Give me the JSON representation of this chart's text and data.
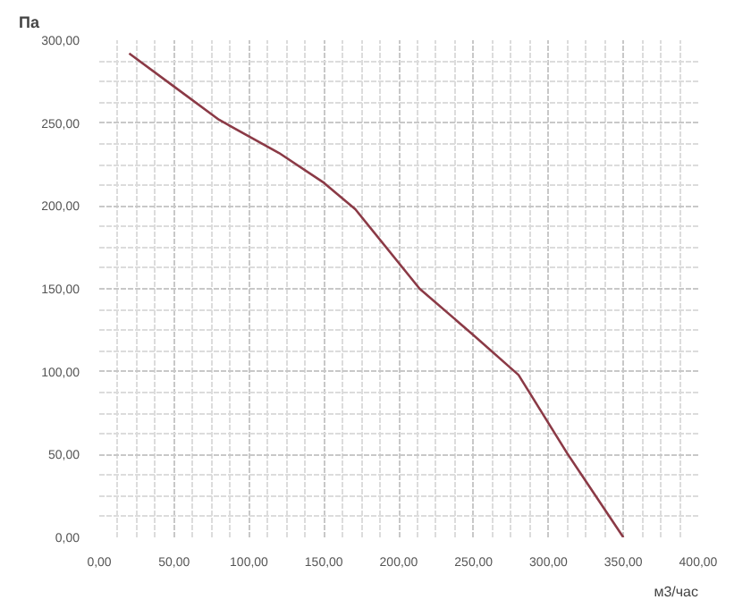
{
  "chart_data": {
    "type": "line",
    "xlabel": "м3/час",
    "ylabel": "Па",
    "x": [
      20,
      50,
      80,
      120,
      150,
      171,
      214,
      250,
      280,
      313,
      350
    ],
    "series": [
      {
        "color": "#8b3a46",
        "values": [
          292,
          272,
          252,
          232,
          214,
          198,
          150,
          122,
          98,
          50,
          0
        ]
      }
    ],
    "xlim": [
      0,
      400
    ],
    "ylim": [
      0,
      300
    ],
    "xticks": [
      {
        "value": 0,
        "label": "0,00"
      },
      {
        "value": 50,
        "label": "50,00"
      },
      {
        "value": 100,
        "label": "100,00"
      },
      {
        "value": 150,
        "label": "150,00"
      },
      {
        "value": 200,
        "label": "200,00"
      },
      {
        "value": 250,
        "label": "250,00"
      },
      {
        "value": 300,
        "label": "300,00"
      },
      {
        "value": 350,
        "label": "350,00"
      },
      {
        "value": 400,
        "label": "400,00"
      }
    ],
    "yticks": [
      {
        "value": 0,
        "label": "0,00"
      },
      {
        "value": 50,
        "label": "50,00"
      },
      {
        "value": 100,
        "label": "100,00"
      },
      {
        "value": 150,
        "label": "150,00"
      },
      {
        "value": 200,
        "label": "200,00"
      },
      {
        "value": 250,
        "label": "250,00"
      },
      {
        "value": 300,
        "label": "300,00"
      }
    ],
    "grid": true,
    "marker": "none",
    "line_style": "solid"
  }
}
